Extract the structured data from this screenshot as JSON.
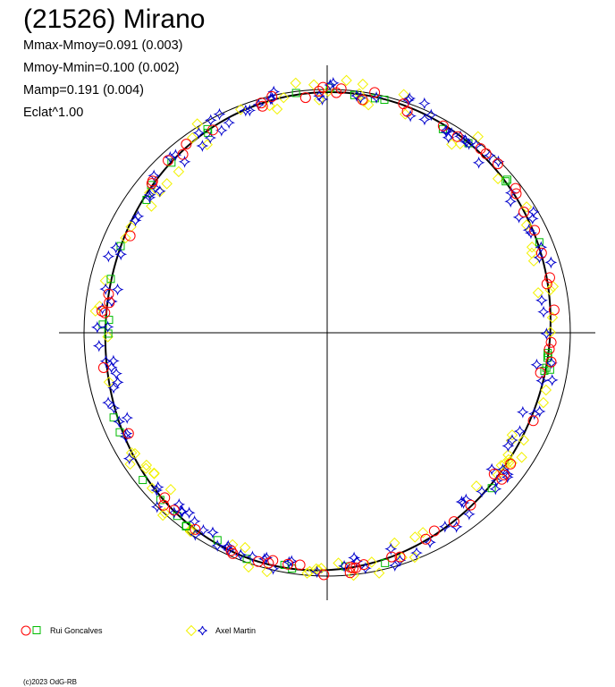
{
  "title": "(21526) Mirano",
  "stats": [
    "Mmax-Mmoy=0.091 (0.003)",
    "Mmoy-Mmin=0.100 (0.002)",
    "Mamp=0.191 (0.004)",
    "Eclat^1.00"
  ],
  "legend": [
    {
      "label": "Rui Goncalves",
      "markers": [
        "circle",
        "square"
      ],
      "colors": [
        "#ff0000",
        "#00bb00"
      ]
    },
    {
      "label": "Axel Martin",
      "markers": [
        "diamond",
        "star"
      ],
      "colors": [
        "#f2f200",
        "#0000cc"
      ]
    }
  ],
  "copyright": "(c)2023 OdG-RB",
  "chart_data": {
    "type": "scatter",
    "coordinate_system": "polar",
    "description": "Polar lightcurve: radius = brightness, angle = rotational phase",
    "reference_circle": true,
    "axes": "cross through center",
    "fitted_curve": "closed black lightcurve fit",
    "series": [
      {
        "name": "Rui Goncalves",
        "marker": "circle",
        "color": "#ff0000"
      },
      {
        "name": "Rui Goncalves",
        "marker": "square",
        "color": "#00bb00"
      },
      {
        "name": "Axel Martin",
        "marker": "diamond",
        "color": "#f2f200"
      },
      {
        "name": "Axel Martin",
        "marker": "star",
        "color": "#0000cc"
      }
    ]
  }
}
